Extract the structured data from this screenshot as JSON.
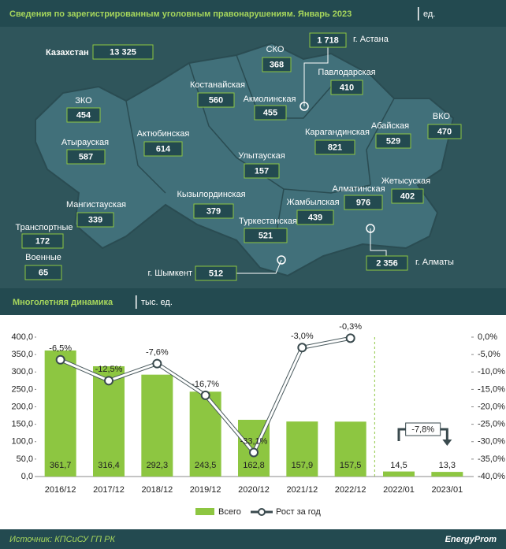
{
  "header": {
    "title": "Сведения по зарегистрированным уголовным правонарушениям. Январь 2023",
    "unit": "ед."
  },
  "map": {
    "regions": [
      {
        "name": "Казахстан",
        "value": "13 325"
      },
      {
        "name": "СКО",
        "value": "368"
      },
      {
        "name": "г. Астана",
        "value": "1 718"
      },
      {
        "name": "Павлодарская",
        "value": "410"
      },
      {
        "name": "Костанайская",
        "value": "560"
      },
      {
        "name": "Акмолинская",
        "value": "455"
      },
      {
        "name": "ЗКО",
        "value": "454"
      },
      {
        "name": "Абайская",
        "value": "529"
      },
      {
        "name": "ВКО",
        "value": "470"
      },
      {
        "name": "Актюбинская",
        "value": "614"
      },
      {
        "name": "Атырауская",
        "value": "587"
      },
      {
        "name": "Карагандинская",
        "value": "821"
      },
      {
        "name": "Улытауская",
        "value": "157"
      },
      {
        "name": "Жетысуская",
        "value": "402"
      },
      {
        "name": "Алматинская",
        "value": "976"
      },
      {
        "name": "Кызылординская",
        "value": "379"
      },
      {
        "name": "Мангистауская",
        "value": "339"
      },
      {
        "name": "Жамбылская",
        "value": "439"
      },
      {
        "name": "Туркестанская",
        "value": "521"
      },
      {
        "name": "Транспортные",
        "value": "172"
      },
      {
        "name": "Военные",
        "value": "65"
      },
      {
        "name": "г. Шымкент",
        "value": "512"
      },
      {
        "name": "г. Алматы",
        "value": "2 356"
      }
    ]
  },
  "chart_data": {
    "type": "bar",
    "title": "Многолетняя динамика",
    "subtitle": "тыс. ед.",
    "categories": [
      "2016/12",
      "2017/12",
      "2018/12",
      "2019/12",
      "2020/12",
      "2021/12",
      "2022/12",
      "2022/01",
      "2023/01"
    ],
    "series": [
      {
        "name": "Всего",
        "type": "bar",
        "color": "#8dc641",
        "values": [
          361.7,
          316.4,
          292.3,
          243.5,
          162.8,
          157.9,
          157.5,
          14.5,
          13.3
        ],
        "value_labels": [
          "361,7",
          "316,4",
          "292,3",
          "243,5",
          "162,8",
          "157,9",
          "157,5",
          "14,5",
          "13,3"
        ]
      },
      {
        "name": "Рост за год",
        "type": "line",
        "axis": "y2",
        "color": "#ffffff",
        "values": [
          -6.5,
          -12.5,
          -7.6,
          -16.7,
          -33.1,
          -3.0,
          -0.3,
          null,
          null
        ],
        "value_labels": [
          "-6,5%",
          "-12,5%",
          "-7,6%",
          "-16,7%",
          "-33,1%",
          "-3,0%",
          "-0,3%",
          null,
          null
        ]
      }
    ],
    "annotation": "-7,8%",
    "ylim": [
      0,
      400
    ],
    "yticks": [
      {
        "value": 0,
        "label": "0,0"
      },
      {
        "value": 50,
        "label": "50,0"
      },
      {
        "value": 100,
        "label": "100,0"
      },
      {
        "value": 150,
        "label": "150,0"
      },
      {
        "value": 200,
        "label": "200,0"
      },
      {
        "value": 250,
        "label": "250,0"
      },
      {
        "value": 300,
        "label": "300,0"
      },
      {
        "value": 350,
        "label": "350,0"
      },
      {
        "value": 400,
        "label": "400,0"
      }
    ],
    "y2lim": [
      -40,
      0
    ],
    "y2ticks": [
      {
        "value": -40,
        "label": "-40,0%"
      },
      {
        "value": -35,
        "label": "-35,0%"
      },
      {
        "value": -30,
        "label": "-30,0%"
      },
      {
        "value": -25,
        "label": "-25,0%"
      },
      {
        "value": -20,
        "label": "-20,0%"
      },
      {
        "value": -15,
        "label": "-15,0%"
      },
      {
        "value": -10,
        "label": "-10,0%"
      },
      {
        "value": -5,
        "label": "-5,0%"
      },
      {
        "value": 0,
        "label": "0,0%"
      }
    ],
    "legend": "bottom"
  },
  "footer": {
    "source": "Источник: КПСиСУ ГП РК",
    "logo": "EnergyProm"
  }
}
